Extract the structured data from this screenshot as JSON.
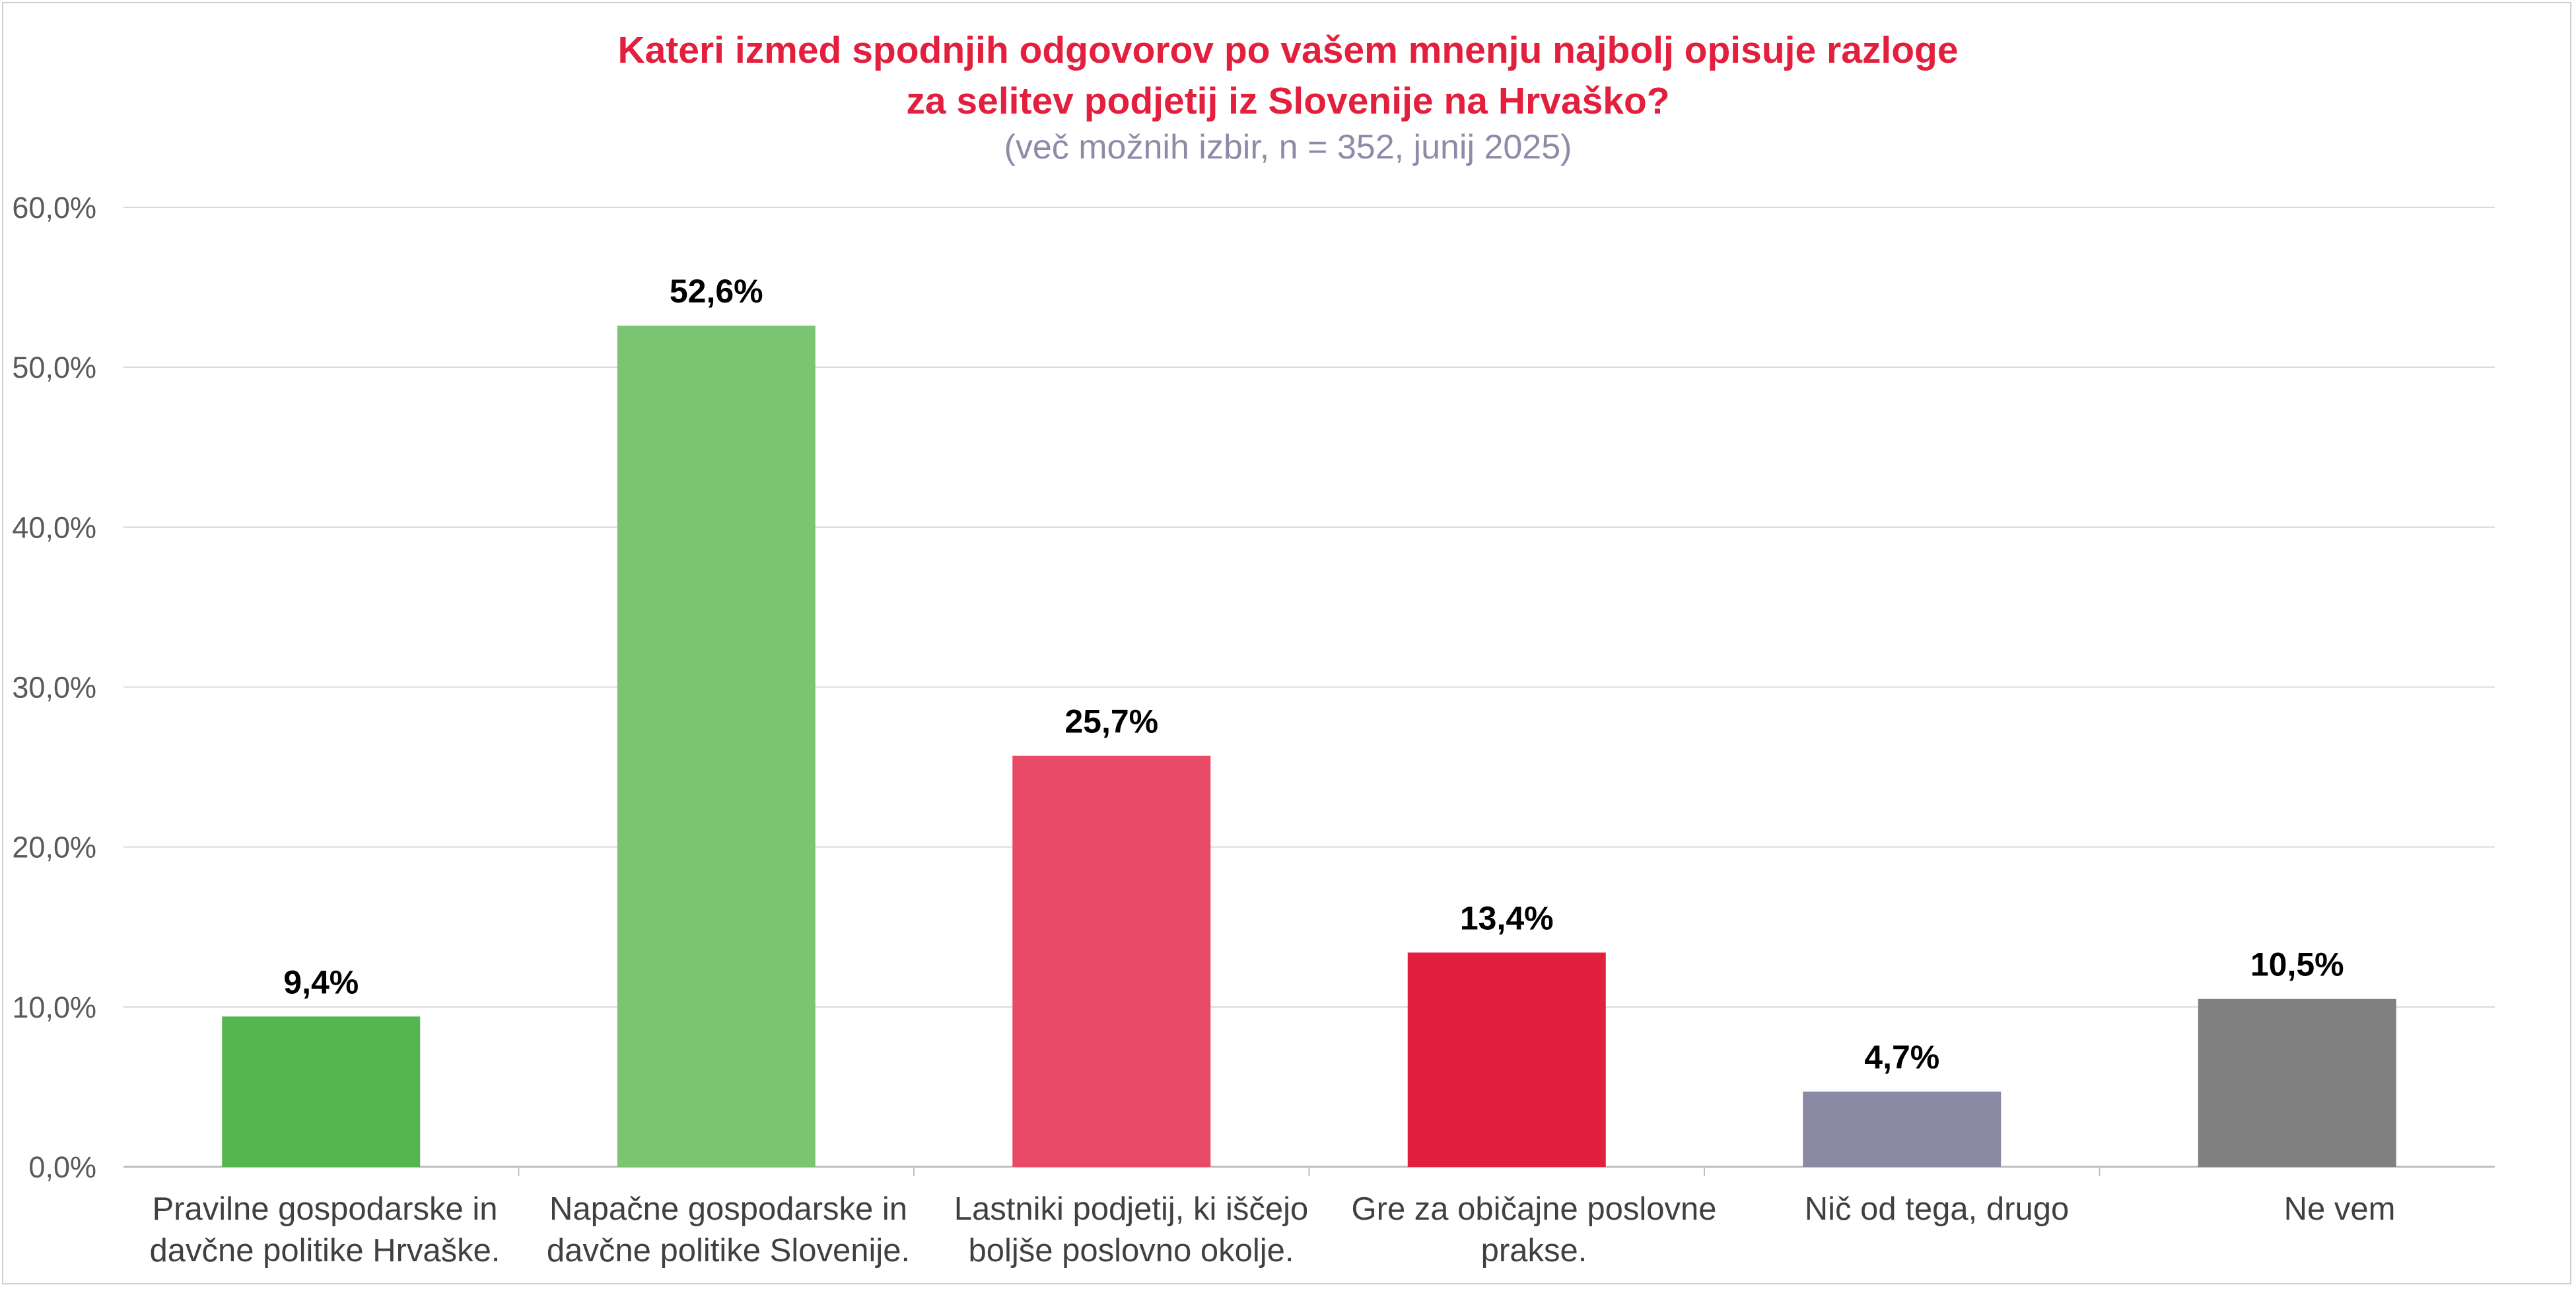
{
  "chart_data": {
    "type": "bar",
    "title": "Kateri izmed spodnjih odgovorov po vašem mnenju najbolj opisuje razloge",
    "title_line2": "za selitev podjetij iz Slovenije na Hrvaško?",
    "subtitle": "(več možnih izbir, n = 352, junij 2025)",
    "categories": [
      {
        "line1": "Pravilne gospodarske in",
        "line2": "davčne politike Hrvaške."
      },
      {
        "line1": "Napačne gospodarske in",
        "line2": "davčne politike Slovenije."
      },
      {
        "line1": "Lastniki podjetij, ki iščejo",
        "line2": "boljše poslovno okolje."
      },
      {
        "line1": "Gre za običajne poslovne",
        "line2": "prakse."
      },
      {
        "line1": "Nič od tega, drugo",
        "line2": ""
      },
      {
        "line1": "Ne vem",
        "line2": ""
      }
    ],
    "values": [
      9.4,
      52.6,
      25.7,
      13.4,
      4.7,
      10.5
    ],
    "data_labels": [
      "9,4%",
      "52,6%",
      "25,7%",
      "13,4%",
      "4,7%",
      "10,5%"
    ],
    "bar_colors": [
      "#54b64e",
      "#7bc472",
      "#e84a67",
      "#e21f3d",
      "#8a8aa4",
      "#808080"
    ],
    "yticks": [
      0,
      10,
      20,
      30,
      40,
      50,
      60
    ],
    "ytick_labels": [
      "0,0%",
      "10,0%",
      "20,0%",
      "30,0%",
      "40,0%",
      "50,0%",
      "60,0%"
    ],
    "ylim": [
      0,
      60
    ],
    "xlabel": "",
    "ylabel": "",
    "grid": true,
    "legend": "none"
  }
}
